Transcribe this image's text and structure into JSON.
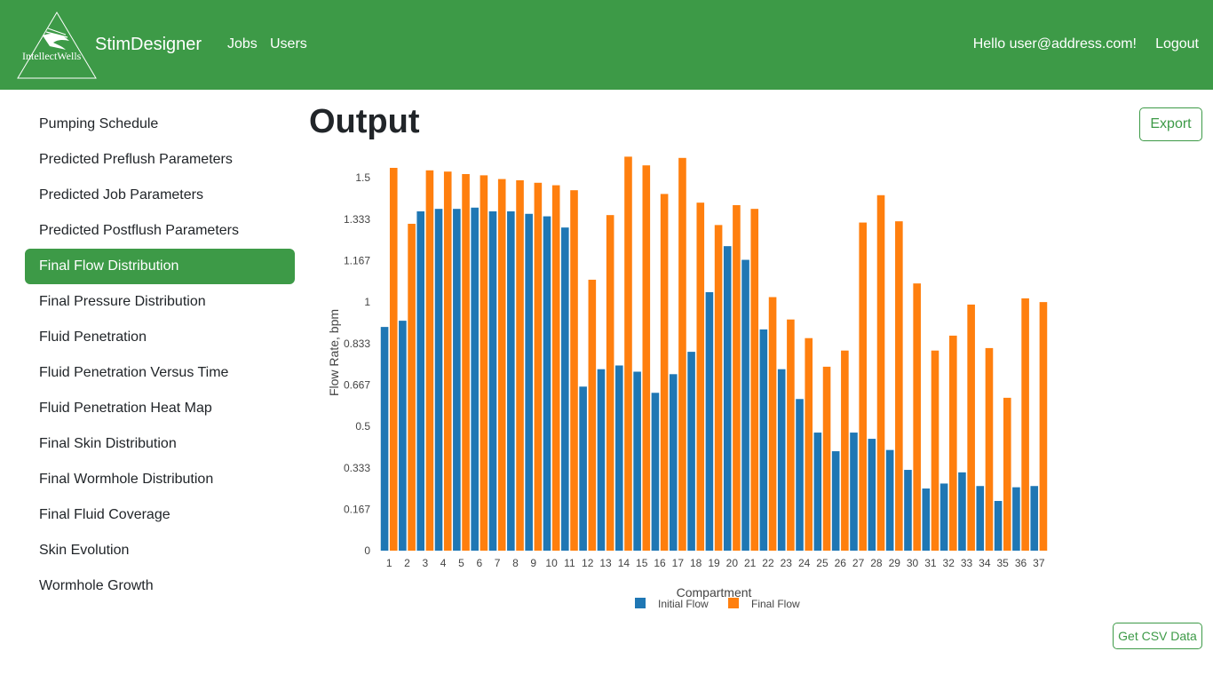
{
  "header": {
    "logo_text": "IntellectWells",
    "brand": "StimDesigner",
    "nav": [
      "Jobs",
      "Users"
    ],
    "greeting": "Hello user@address.com!",
    "logout": "Logout",
    "colors": {
      "primary": "#3d9a47"
    }
  },
  "sidebar": {
    "items": [
      {
        "label": "Pumping Schedule",
        "active": false
      },
      {
        "label": "Predicted Preflush Parameters",
        "active": false
      },
      {
        "label": "Predicted Job Parameters",
        "active": false
      },
      {
        "label": "Predicted Postflush Parameters",
        "active": false
      },
      {
        "label": "Final Flow Distribution",
        "active": true
      },
      {
        "label": "Final Pressure Distribution",
        "active": false
      },
      {
        "label": "Fluid Penetration",
        "active": false
      },
      {
        "label": "Fluid Penetration Versus Time",
        "active": false
      },
      {
        "label": "Fluid Penetration Heat Map",
        "active": false
      },
      {
        "label": "Final Skin Distribution",
        "active": false
      },
      {
        "label": "Final Wormhole Distribution",
        "active": false
      },
      {
        "label": "Final Fluid Coverage",
        "active": false
      },
      {
        "label": "Skin Evolution",
        "active": false
      },
      {
        "label": "Wormhole Growth",
        "active": false
      }
    ]
  },
  "main": {
    "title": "Output",
    "export_label": "Export",
    "csv_label": "Get CSV Data"
  },
  "chart_data": {
    "type": "bar",
    "xlabel": "Compartment",
    "ylabel": "Flow Rate, bpm",
    "ylim": [
      0,
      1.59
    ],
    "yticks": [
      "0",
      "0.167",
      "0.333",
      "0.5",
      "0.667",
      "0.833",
      "1",
      "1.167",
      "1.333",
      "1.5"
    ],
    "categories": [
      "1",
      "2",
      "3",
      "4",
      "5",
      "6",
      "7",
      "8",
      "9",
      "10",
      "11",
      "12",
      "13",
      "14",
      "15",
      "16",
      "17",
      "18",
      "19",
      "20",
      "21",
      "22",
      "23",
      "24",
      "25",
      "26",
      "27",
      "28",
      "29",
      "30",
      "31",
      "32",
      "33",
      "34",
      "35",
      "36",
      "37"
    ],
    "legend_position": "bottom",
    "series": [
      {
        "name": "Initial Flow",
        "color": "#1f77b4",
        "values": [
          0.9,
          0.925,
          1.365,
          1.375,
          1.375,
          1.38,
          1.365,
          1.365,
          1.355,
          1.345,
          1.3,
          0.66,
          0.73,
          0.745,
          0.72,
          0.635,
          0.71,
          0.8,
          1.04,
          1.225,
          1.17,
          0.89,
          0.73,
          0.61,
          0.475,
          0.4,
          0.475,
          0.45,
          0.405,
          0.325,
          0.25,
          0.27,
          0.315,
          0.26,
          0.2,
          0.255,
          0.26
        ]
      },
      {
        "name": "Final Flow",
        "color": "#ff7f0e",
        "values": [
          1.54,
          1.315,
          1.53,
          1.525,
          1.515,
          1.51,
          1.495,
          1.49,
          1.48,
          1.47,
          1.45,
          1.09,
          1.35,
          1.585,
          1.55,
          1.435,
          1.58,
          1.4,
          1.31,
          1.39,
          1.375,
          1.02,
          0.93,
          0.855,
          0.74,
          0.805,
          1.32,
          1.43,
          1.325,
          1.075,
          0.805,
          0.865,
          0.99,
          0.815,
          0.615,
          1.015,
          1.0
        ]
      }
    ]
  }
}
